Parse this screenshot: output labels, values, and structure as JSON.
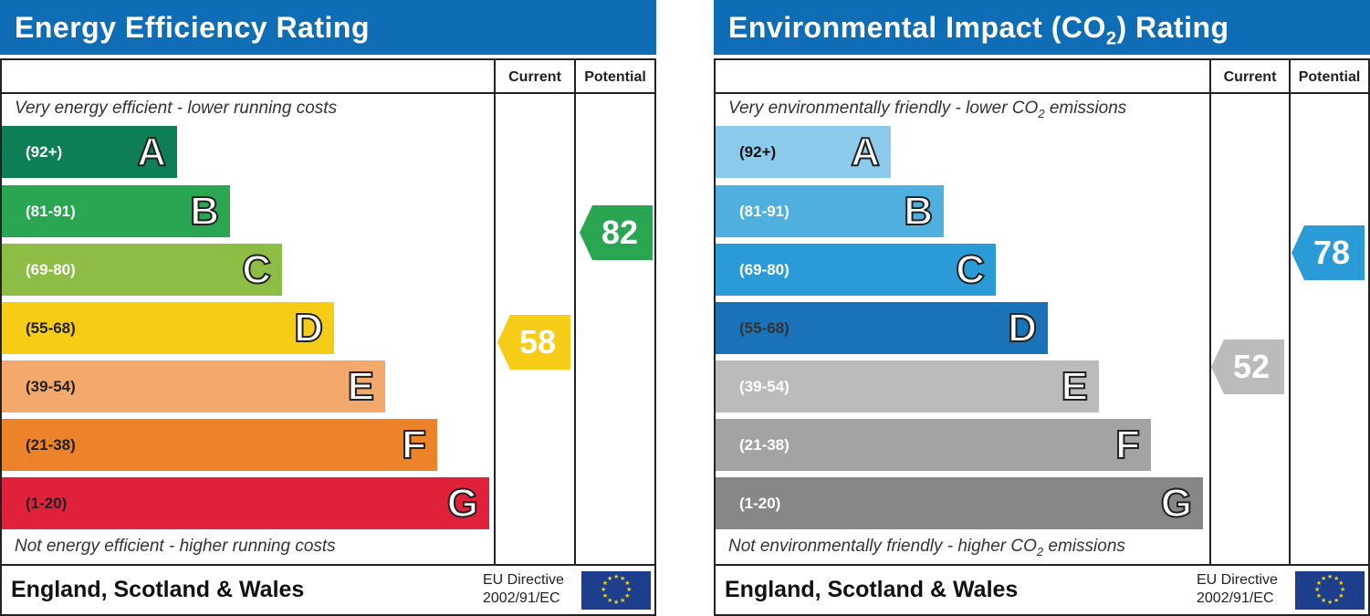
{
  "energy": {
    "title": "Energy Efficiency Rating",
    "col_current": "Current",
    "col_potential": "Potential",
    "top_caption": "Very energy efficient - lower running costs",
    "bottom_caption": "Not energy efficient - higher running costs",
    "bands": [
      {
        "range": "(92+)",
        "letter": "A",
        "color": "#0e7f54"
      },
      {
        "range": "(81-91)",
        "letter": "B",
        "color": "#2aa653"
      },
      {
        "range": "(69-80)",
        "letter": "C",
        "color": "#8dbd45"
      },
      {
        "range": "(55-68)",
        "letter": "D",
        "color": "#f6cc17"
      },
      {
        "range": "(39-54)",
        "letter": "E",
        "color": "#f2a96b"
      },
      {
        "range": "(21-38)",
        "letter": "F",
        "color": "#ec8229"
      },
      {
        "range": "(1-20)",
        "letter": "G",
        "color": "#e0213a"
      }
    ],
    "current": {
      "value": "58",
      "color": "#f6cc17"
    },
    "potential": {
      "value": "82",
      "color": "#2aa653"
    },
    "footer": "England, Scotland & Wales",
    "directive_line1": "EU Directive",
    "directive_line2": "2002/91/EC"
  },
  "environment": {
    "title_prefix": "Environmental Impact (CO",
    "title_sub": "2",
    "title_suffix": ") Rating",
    "col_current": "Current",
    "col_potential": "Potential",
    "top_caption_prefix": "Very environmentally friendly - lower CO",
    "top_caption_sub": "2",
    "top_caption_suffix": " emissions",
    "bottom_caption_prefix": "Not environmentally friendly - higher CO",
    "bottom_caption_sub": "2",
    "bottom_caption_suffix": " emissions",
    "bands": [
      {
        "range": "(92+)",
        "letter": "A",
        "color": "#8ccbeb"
      },
      {
        "range": "(81-91)",
        "letter": "B",
        "color": "#4fb0e0"
      },
      {
        "range": "(69-80)",
        "letter": "C",
        "color": "#2b9bd7"
      },
      {
        "range": "(55-68)",
        "letter": "D",
        "color": "#1a72b8"
      },
      {
        "range": "(39-54)",
        "letter": "E",
        "color": "#bbbbbb"
      },
      {
        "range": "(21-38)",
        "letter": "F",
        "color": "#a3a3a3"
      },
      {
        "range": "(1-20)",
        "letter": "G",
        "color": "#878787"
      }
    ],
    "current": {
      "value": "52",
      "color": "#bbbbbb"
    },
    "potential": {
      "value": "78",
      "color": "#2b9bd7"
    },
    "footer": "England, Scotland & Wales",
    "directive_line1": "EU Directive",
    "directive_line2": "2002/91/EC"
  }
}
